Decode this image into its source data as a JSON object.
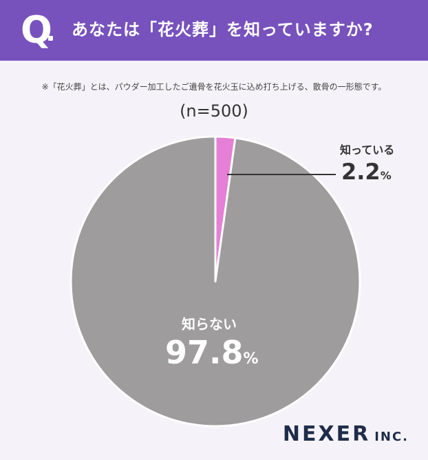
{
  "header": {
    "q_mark": "Q",
    "question": "あなたは「花火葬」を知っていますか?"
  },
  "note": "※「花火葬」とは、パウダー加工したご遺骨を花火玉に込め打ち上げる、散骨の一形態です。",
  "sample_size": "(n=500)",
  "chart_data": {
    "type": "pie",
    "categories": [
      "知っている",
      "知らない"
    ],
    "values": [
      2.2,
      97.8
    ],
    "unit": "%",
    "colors": [
      "#e67fd6",
      "#9e9c9c"
    ],
    "start_angle_deg": 0,
    "direction": "clockwise"
  },
  "labels": {
    "know": {
      "name": "知っている",
      "value": "2.2",
      "unit": "%"
    },
    "dont_know": {
      "name": "知らない",
      "value": "97.8",
      "unit": "%"
    }
  },
  "brand": {
    "name": "NEXER",
    "suffix": "INC."
  }
}
